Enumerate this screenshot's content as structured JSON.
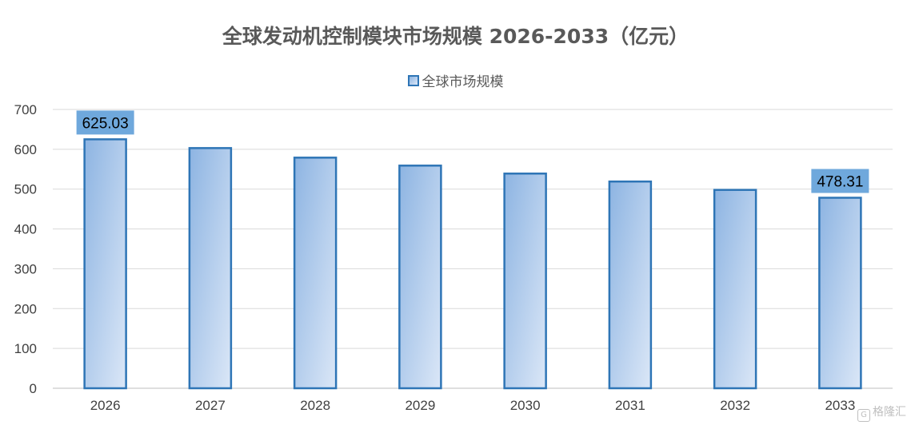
{
  "chart_data": {
    "type": "bar",
    "title": "全球发动机控制模块市场规模 2026-2033（亿元）",
    "categories": [
      "2026",
      "2027",
      "2028",
      "2029",
      "2030",
      "2031",
      "2032",
      "2033"
    ],
    "series": [
      {
        "name": "全球市场规模",
        "values": [
          625.03,
          603,
          579,
          559,
          539,
          519,
          498,
          478.31
        ]
      }
    ],
    "data_labels": [
      {
        "category": "2026",
        "text": "625.03"
      },
      {
        "category": "2033",
        "text": "478.31"
      }
    ],
    "ylim": [
      0,
      700
    ],
    "yticks": [
      "0",
      "100",
      "200",
      "300",
      "400",
      "500",
      "600",
      "700"
    ],
    "xlabel": "",
    "ylabel": "",
    "grid": true,
    "legend_position": "top",
    "colors": {
      "bar_border": "#2e75b6",
      "bar_fill_dark": "#8db4e2",
      "bar_fill_light": "#dbe7f7",
      "label_box": "#6fa8dc",
      "gridline": "#d9d9d9"
    }
  },
  "watermark": {
    "text": "格隆汇",
    "icon": "G"
  }
}
